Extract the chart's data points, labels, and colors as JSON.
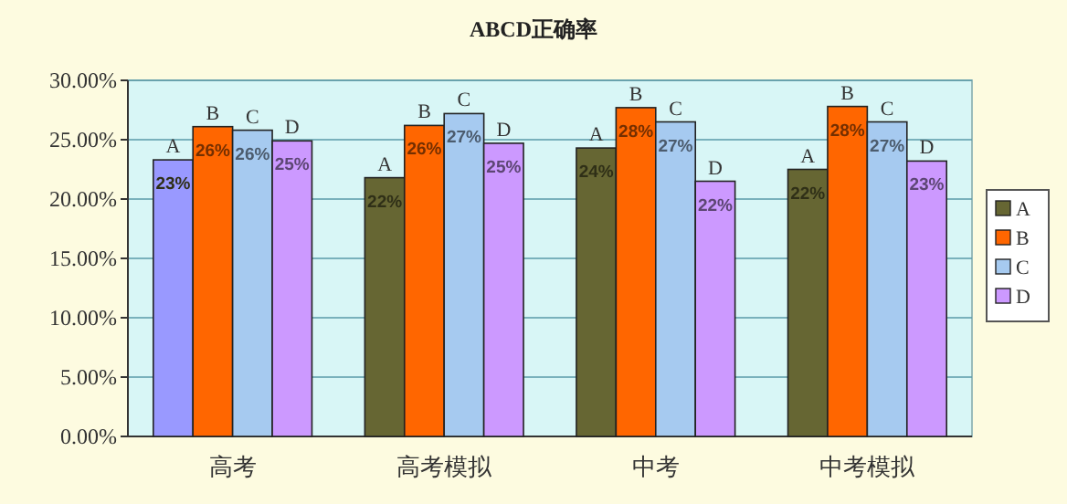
{
  "chart_data": {
    "type": "bar",
    "title": "ABCD正确率",
    "categories": [
      "高考",
      "高考模拟",
      "中考",
      "中考模拟"
    ],
    "series": [
      {
        "name": "A",
        "color": "#666633",
        "colors": [
          "#9999ff",
          "#666633",
          "#666633",
          "#666633"
        ],
        "values": [
          23.3,
          21.8,
          24.3,
          22.5
        ],
        "value_labels": [
          "23%",
          "22%",
          "24%",
          "22%"
        ]
      },
      {
        "name": "B",
        "color": "#ff6600",
        "values": [
          26.1,
          26.2,
          27.7,
          27.8
        ],
        "value_labels": [
          "26%",
          "26%",
          "28%",
          "28%"
        ]
      },
      {
        "name": "C",
        "color": "#a6caf0",
        "values": [
          25.8,
          27.2,
          26.5,
          26.5
        ],
        "value_labels": [
          "26%",
          "27%",
          "27%",
          "27%"
        ]
      },
      {
        "name": "D",
        "color": "#cc99ff",
        "values": [
          24.9,
          24.7,
          21.5,
          23.2
        ],
        "value_labels": [
          "25%",
          "25%",
          "22%",
          "23%"
        ]
      }
    ],
    "ylim": [
      0,
      30
    ],
    "yticks": [
      {
        "value": 0,
        "label": "0.00%"
      },
      {
        "value": 5,
        "label": "5.00%"
      },
      {
        "value": 10,
        "label": "10.00%"
      },
      {
        "value": 15,
        "label": "15.00%"
      },
      {
        "value": 20,
        "label": "20.00%"
      },
      {
        "value": 25,
        "label": "25.00%"
      },
      {
        "value": 30,
        "label": "30.00%"
      }
    ],
    "grid": "y",
    "legend": "right"
  }
}
